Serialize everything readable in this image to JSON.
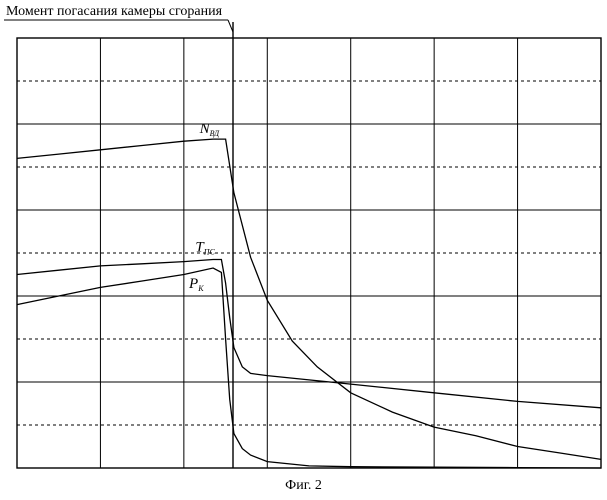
{
  "chart_data": {
    "type": "line",
    "title": "",
    "xlabel": "",
    "ylabel": "",
    "xlim": [
      0,
      7
    ],
    "ylim": [
      0,
      10
    ],
    "grid": true,
    "annotation": {
      "text": "Момент погасания камеры сгорания",
      "x": 2.5
    },
    "series": [
      {
        "name": "N",
        "subscript": "ВД",
        "x": [
          0,
          0.5,
          1,
          1.5,
          2,
          2.35,
          2.5,
          2.6,
          2.8,
          3.0,
          3.3,
          3.6,
          4.0,
          4.5,
          5.0,
          5.5,
          6.0,
          6.5,
          7.0
        ],
        "y": [
          7.2,
          7.3,
          7.4,
          7.5,
          7.6,
          7.65,
          7.65,
          6.4,
          4.9,
          3.9,
          2.95,
          2.35,
          1.75,
          1.3,
          0.95,
          0.75,
          0.5,
          0.35,
          0.2
        ]
      },
      {
        "name": "T",
        "subscript": "ПС",
        "x": [
          0,
          0.5,
          1,
          1.5,
          2,
          2.35,
          2.45,
          2.5,
          2.55,
          2.6,
          2.7,
          2.8,
          3.0,
          3.5,
          4.0,
          5.0,
          6.0,
          7.0
        ],
        "y": [
          4.5,
          4.6,
          4.7,
          4.75,
          4.8,
          4.85,
          4.85,
          4.3,
          3.5,
          2.8,
          2.35,
          2.2,
          2.15,
          2.05,
          1.95,
          1.75,
          1.55,
          1.4
        ]
      },
      {
        "name": "P",
        "subscript": "К",
        "x": [
          0,
          0.5,
          1,
          1.5,
          2,
          2.35,
          2.45,
          2.5,
          2.55,
          2.6,
          2.7,
          2.8,
          3.0,
          3.5,
          4.0,
          5.0,
          6.0,
          7.0
        ],
        "y": [
          3.8,
          4.0,
          4.2,
          4.35,
          4.5,
          4.65,
          4.55,
          3.0,
          1.6,
          0.8,
          0.45,
          0.3,
          0.15,
          0.05,
          0.03,
          0.02,
          0.01,
          0.0
        ]
      }
    ]
  },
  "caption": "Фиг. 2"
}
